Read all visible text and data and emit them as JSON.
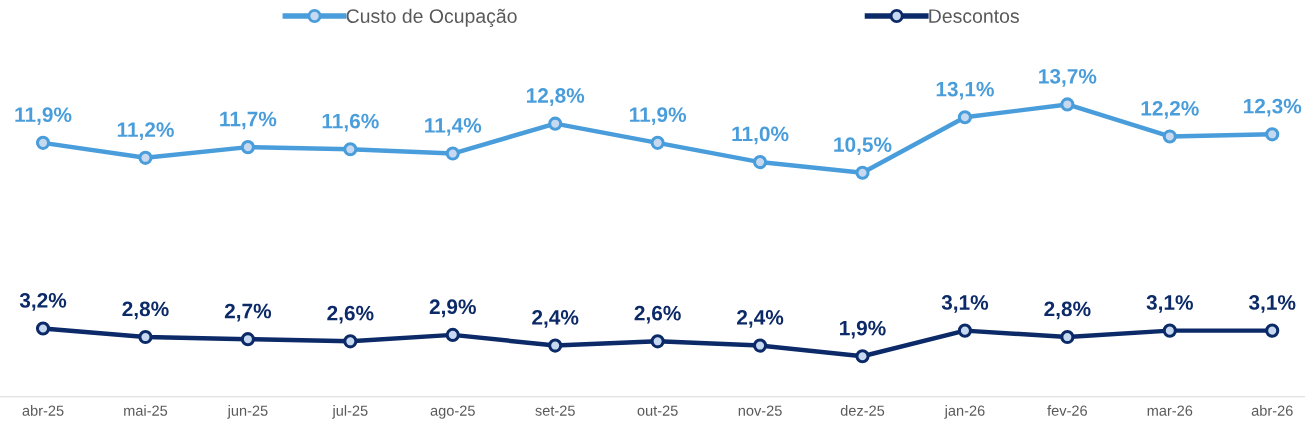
{
  "chart_data": {
    "type": "line",
    "categories": [
      "abr-25",
      "mai-25",
      "jun-25",
      "jul-25",
      "ago-25",
      "set-25",
      "out-25",
      "nov-25",
      "dez-25",
      "jan-26",
      "fev-26",
      "mar-26",
      "abr-26"
    ],
    "series": [
      {
        "name": "Custo de Ocupação",
        "color": "#4a9ddb",
        "values": [
          11.9,
          11.2,
          11.7,
          11.6,
          11.4,
          12.8,
          11.9,
          11.0,
          10.5,
          13.1,
          13.7,
          12.2,
          12.3
        ],
        "value_labels": [
          "11,9%",
          "11,2%",
          "11,7%",
          "11,6%",
          "11,4%",
          "12,8%",
          "11,9%",
          "11,0%",
          "10,5%",
          "13,1%",
          "13,7%",
          "12,2%",
          "12,3%"
        ]
      },
      {
        "name": "Descontos",
        "color": "#0c2a68",
        "values": [
          3.2,
          2.8,
          2.7,
          2.6,
          2.9,
          2.4,
          2.6,
          2.4,
          1.9,
          3.1,
          2.8,
          3.1,
          3.1
        ],
        "value_labels": [
          "3,2%",
          "2,8%",
          "2,7%",
          "2,6%",
          "2,9%",
          "2,4%",
          "2,6%",
          "2,4%",
          "1,9%",
          "3,1%",
          "2,8%",
          "3,1%",
          "3,1%"
        ]
      }
    ],
    "legend": "top",
    "marker": "circle",
    "line_style": "solid",
    "grid": false
  }
}
